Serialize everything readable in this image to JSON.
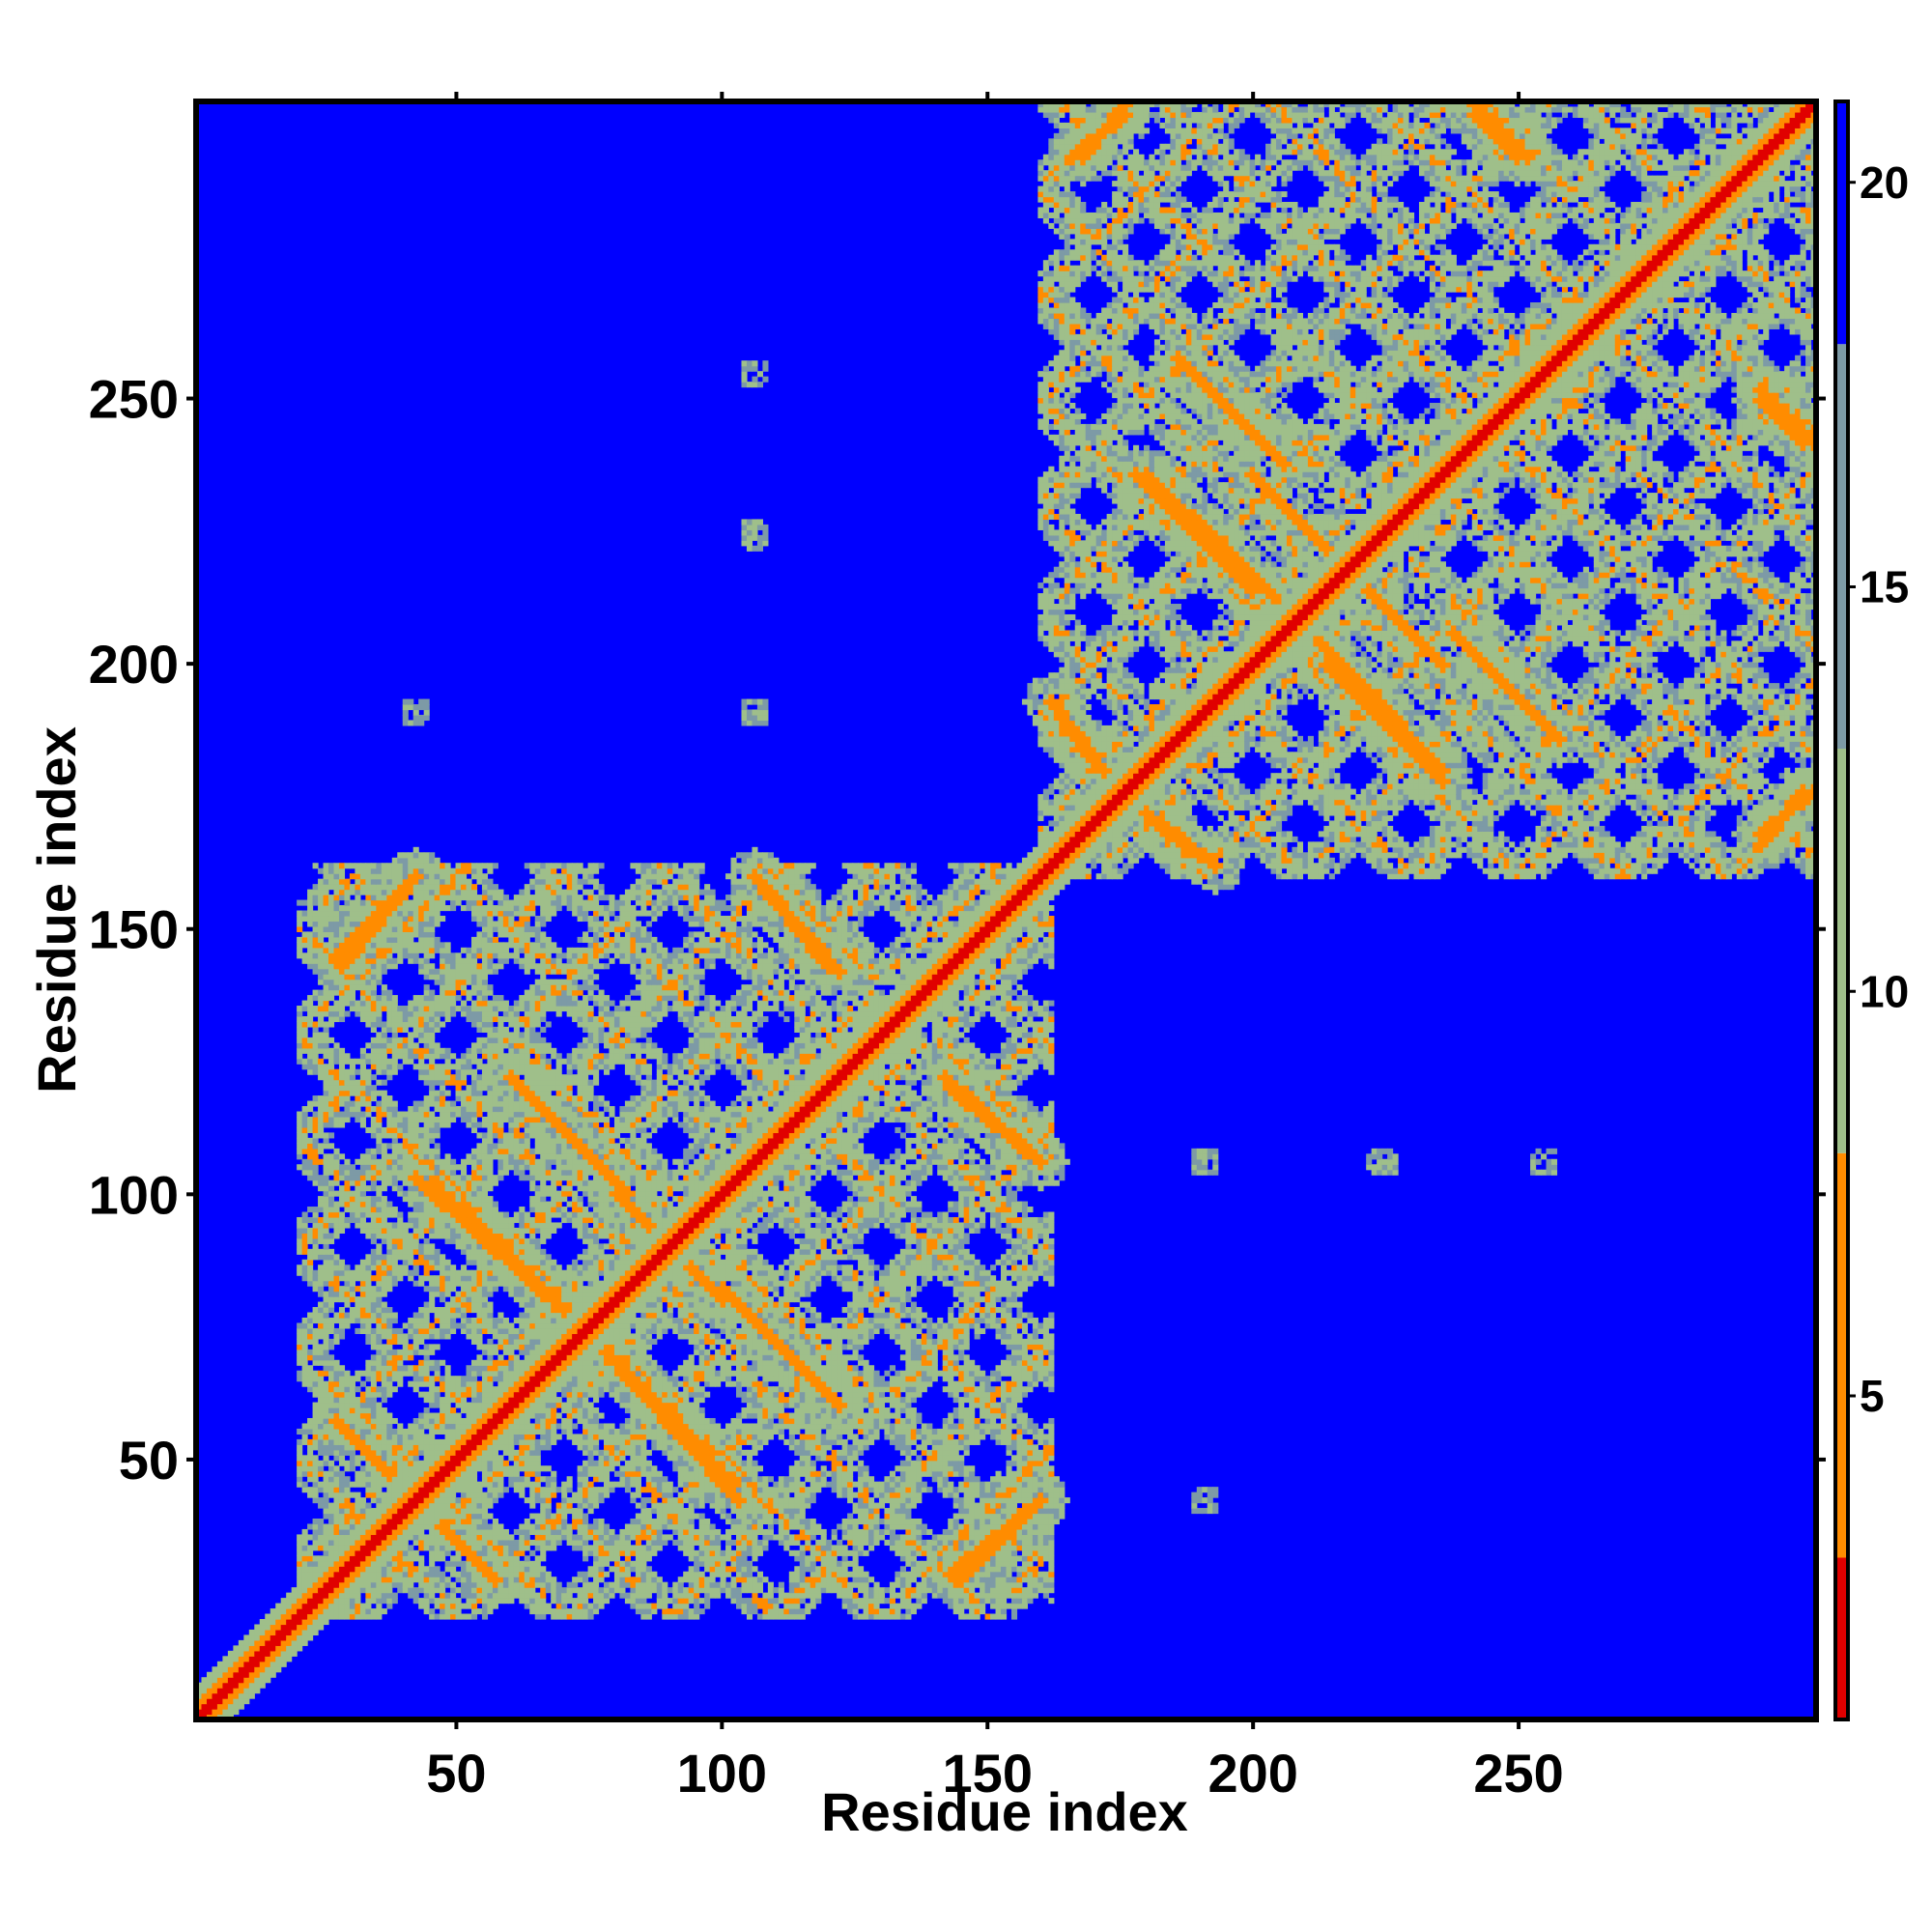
{
  "chart_data": {
    "type": "heatmap",
    "title": "",
    "xlabel": "Residue index",
    "ylabel": "Residue index",
    "xlim": [
      1,
      306
    ],
    "ylim": [
      1,
      306
    ],
    "x_ticks": [
      50,
      100,
      150,
      200,
      250
    ],
    "y_ticks": [
      50,
      100,
      150,
      200,
      250
    ],
    "colorbar": {
      "range": [
        1,
        21
      ],
      "ticks": [
        5,
        10,
        15,
        20
      ],
      "colors": {
        "near": "#e00000",
        "contact": "#ff8c00",
        "mid": "#9fbf8a",
        "edge": "#7d9aa6",
        "background": "#0000ff"
      }
    },
    "background_value": 21,
    "diagonal_value": 2,
    "lattice_blocks": [
      {
        "start": 20,
        "end": 162,
        "period": 20,
        "half_width": 5
      },
      {
        "start": 160,
        "end": 306,
        "period": 20,
        "half_width": 5
      }
    ],
    "contact_bands": [
      {
        "x0": 27,
        "y0": 145,
        "x1": 42,
        "y1": 160
      },
      {
        "x0": 106,
        "y0": 160,
        "x1": 122,
        "y1": 142
      },
      {
        "x0": 60,
        "y0": 122,
        "x1": 72,
        "y1": 110
      },
      {
        "x0": 42,
        "y0": 103,
        "x1": 70,
        "y1": 78
      },
      {
        "x0": 80,
        "y0": 100,
        "x1": 92,
        "y1": 88
      },
      {
        "x0": 100,
        "y0": 82,
        "x1": 122,
        "y1": 60
      },
      {
        "x0": 80,
        "y0": 68,
        "x1": 102,
        "y1": 45
      },
      {
        "x0": 47,
        "y0": 37,
        "x1": 57,
        "y1": 27
      },
      {
        "x0": 143,
        "y0": 120,
        "x1": 160,
        "y1": 106
      },
      {
        "x0": 143,
        "y0": 28,
        "x1": 160,
        "y1": 42
      },
      {
        "x0": 165,
        "y0": 188,
        "x1": 172,
        "y1": 180
      },
      {
        "x0": 183,
        "y0": 170,
        "x1": 193,
        "y1": 162
      },
      {
        "x0": 178,
        "y0": 236,
        "x1": 200,
        "y1": 214
      },
      {
        "x0": 186,
        "y0": 258,
        "x1": 200,
        "y1": 244
      },
      {
        "x0": 212,
        "y0": 205,
        "x1": 236,
        "y1": 180
      },
      {
        "x0": 222,
        "y0": 214,
        "x1": 236,
        "y1": 200
      },
      {
        "x0": 238,
        "y0": 206,
        "x1": 250,
        "y1": 194
      },
      {
        "x0": 166,
        "y0": 296,
        "x1": 176,
        "y1": 304
      },
      {
        "x0": 242,
        "y0": 304,
        "x1": 250,
        "y1": 296
      },
      {
        "x0": 296,
        "y0": 252,
        "x1": 306,
        "y1": 242
      },
      {
        "x0": 296,
        "y0": 168,
        "x1": 306,
        "y1": 176
      }
    ],
    "isolated_spots": [
      {
        "x": 42,
        "y": 191
      },
      {
        "x": 106,
        "y": 191
      },
      {
        "x": 106,
        "y": 224
      },
      {
        "x": 106,
        "y": 255
      },
      {
        "x": 191,
        "y": 106
      },
      {
        "x": 225,
        "y": 106
      },
      {
        "x": 191,
        "y": 42
      }
    ]
  }
}
